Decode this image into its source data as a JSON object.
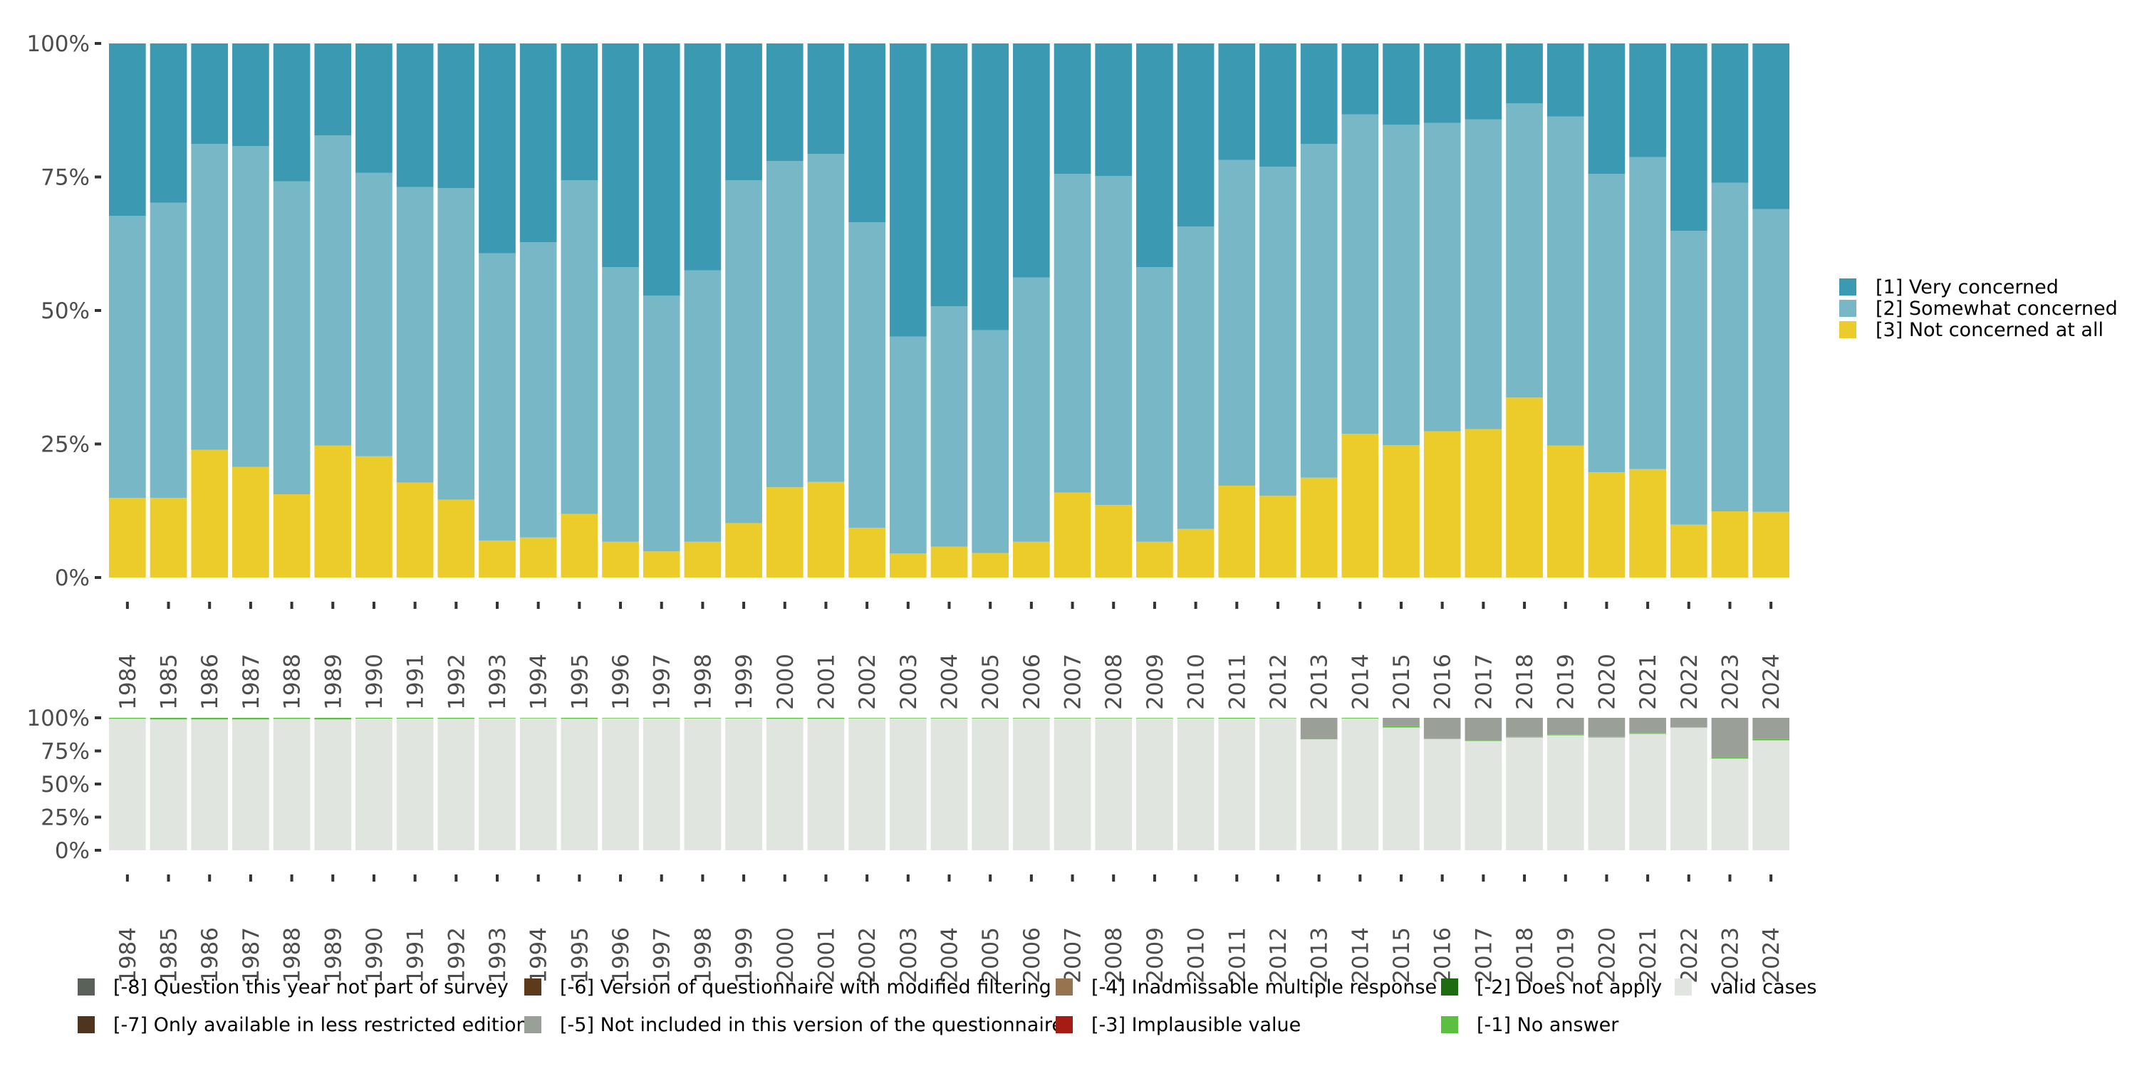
{
  "chart_data": [
    {
      "type": "bar",
      "stacked": true,
      "percent": true,
      "title": "",
      "xlabel": "",
      "ylabel": "",
      "ylim": [
        0,
        100
      ],
      "yticks": [
        "0%",
        "25%",
        "50%",
        "75%",
        "100%"
      ],
      "categories": [
        "1984",
        "1985",
        "1986",
        "1987",
        "1988",
        "1989",
        "1990",
        "1991",
        "1992",
        "1993",
        "1994",
        "1995",
        "1996",
        "1997",
        "1998",
        "1999",
        "2000",
        "2001",
        "2002",
        "2003",
        "2004",
        "2005",
        "2006",
        "2007",
        "2008",
        "2009",
        "2010",
        "2011",
        "2012",
        "2013",
        "2014",
        "2015",
        "2016",
        "2017",
        "2018",
        "2019",
        "2020",
        "2021",
        "2022",
        "2023",
        "2024"
      ],
      "legend_position": "right",
      "series": [
        {
          "name": "[3] Not concerned at all",
          "color": "#EBCC2A",
          "values": [
            14.9,
            14.9,
            23.9,
            20.7,
            15.6,
            24.7,
            22.7,
            17.8,
            14.6,
            6.9,
            7.5,
            11.9,
            6.7,
            4.9,
            6.7,
            10.2,
            16.9,
            17.9,
            9.3,
            4.5,
            5.8,
            4.6,
            6.7,
            15.9,
            13.6,
            6.7,
            9.1,
            17.2,
            15.3,
            18.7,
            26.9,
            24.8,
            27.4,
            27.8,
            33.7,
            24.7,
            19.7,
            20.3,
            9.9,
            12.4,
            12.3
          ]
        },
        {
          "name": "[2] Somewhat concerned",
          "color": "#78B7C5",
          "values": [
            52.8,
            55.3,
            57.3,
            60.1,
            58.6,
            58.1,
            53.1,
            55.3,
            58.3,
            53.8,
            55.3,
            62.5,
            51.4,
            47.9,
            50.8,
            64.2,
            61.1,
            61.4,
            57.2,
            40.6,
            45.0,
            41.7,
            49.5,
            59.7,
            61.6,
            51.4,
            56.6,
            61.0,
            61.6,
            62.5,
            59.8,
            60.0,
            57.7,
            58.0,
            55.1,
            61.6,
            55.9,
            58.4,
            55.0,
            61.5,
            56.7
          ]
        },
        {
          "name": "[1] Very concerned",
          "color": "#3B9AB2",
          "values": [
            32.3,
            29.8,
            18.8,
            19.2,
            25.8,
            17.2,
            24.2,
            26.9,
            27.1,
            39.3,
            37.2,
            25.6,
            41.9,
            47.2,
            42.5,
            25.6,
            22.0,
            20.7,
            33.5,
            54.9,
            49.2,
            53.7,
            43.8,
            24.4,
            24.8,
            41.9,
            34.3,
            21.8,
            23.1,
            18.8,
            13.3,
            15.2,
            14.9,
            14.2,
            11.2,
            13.7,
            24.4,
            21.3,
            35.1,
            26.1,
            31.0
          ]
        }
      ]
    },
    {
      "type": "bar",
      "stacked": true,
      "percent": true,
      "ylim": [
        0,
        100
      ],
      "yticks": [
        "0%",
        "25%",
        "50%",
        "75%",
        "100%"
      ],
      "categories": [
        "1984",
        "1985",
        "1986",
        "1987",
        "1988",
        "1989",
        "1990",
        "1991",
        "1992",
        "1993",
        "1994",
        "1995",
        "1996",
        "1997",
        "1998",
        "1999",
        "2000",
        "2001",
        "2002",
        "2003",
        "2004",
        "2005",
        "2006",
        "2007",
        "2008",
        "2009",
        "2010",
        "2011",
        "2012",
        "2013",
        "2014",
        "2015",
        "2016",
        "2017",
        "2018",
        "2019",
        "2020",
        "2021",
        "2022",
        "2023",
        "2024"
      ],
      "legend_position": "bottom",
      "series": [
        {
          "name": "valid cases",
          "color": "#E0E5DF",
          "values": [
            99.3,
            98.8,
            98.8,
            98.8,
            99.2,
            98.8,
            99.4,
            99.4,
            99.3,
            99.6,
            99.6,
            99.3,
            99.6,
            99.6,
            99.6,
            99.6,
            99.3,
            99.3,
            99.6,
            99.6,
            99.6,
            99.6,
            99.6,
            99.6,
            99.6,
            99.6,
            99.6,
            99.4,
            99.7,
            83.8,
            99.5,
            92.7,
            84.0,
            82.5,
            85.2,
            86.8,
            85.2,
            87.9,
            92.7,
            69.2,
            83.0
          ]
        },
        {
          "name": "[-1] No answer",
          "color": "#5BBF40",
          "values": [
            0.7,
            1.2,
            1.2,
            1.2,
            0.8,
            1.2,
            0.6,
            0.6,
            0.7,
            0.4,
            0.4,
            0.7,
            0.4,
            0.4,
            0.4,
            0.4,
            0.7,
            0.7,
            0.4,
            0.4,
            0.4,
            0.4,
            0.4,
            0.4,
            0.4,
            0.4,
            0.4,
            0.6,
            0.3,
            0.3,
            0.5,
            1.0,
            0.3,
            0.3,
            0.4,
            0.4,
            0.4,
            0.4,
            0.3,
            0.9,
            1.0
          ]
        },
        {
          "name": "[-5] Not included in this version of the questionnaire",
          "color": "#9A9F98",
          "values": [
            0,
            0,
            0,
            0,
            0,
            0,
            0,
            0,
            0,
            0,
            0,
            0,
            0,
            0,
            0,
            0,
            0,
            0,
            0,
            0,
            0,
            0,
            0,
            0,
            0,
            0,
            0,
            0,
            0,
            15.9,
            0,
            6.3,
            15.7,
            17.2,
            14.4,
            12.8,
            14.4,
            11.7,
            7.0,
            29.9,
            16.0
          ]
        }
      ]
    }
  ],
  "legend_top": [
    {
      "label": "[1] Very concerned",
      "color": "#3B9AB2"
    },
    {
      "label": "[2] Somewhat concerned",
      "color": "#78B7C5"
    },
    {
      "label": "[3] Not concerned at all",
      "color": "#EBCC2A"
    }
  ],
  "legend_bottom": [
    {
      "label": "[-8] Question this year not part of survey",
      "color": "#5A6158"
    },
    {
      "label": "[-6] Version of questionnaire with modified filtering",
      "color": "#5C3A1A"
    },
    {
      "label": "[-4] Inadmissable multiple response",
      "color": "#97734F"
    },
    {
      "label": "[-2] Does not apply",
      "color": "#1E6B12"
    },
    {
      "label": "valid cases",
      "color": "#E0E5DF"
    },
    {
      "label": "[-7] Only available in less restricted edition",
      "color": "#4F341E"
    },
    {
      "label": "[-5] Not included in this version of the questionnaire",
      "color": "#9A9F98"
    },
    {
      "label": "[-3] Implausible value",
      "color": "#A51C14"
    },
    {
      "label": "[-1] No answer",
      "color": "#5BBF40"
    }
  ]
}
